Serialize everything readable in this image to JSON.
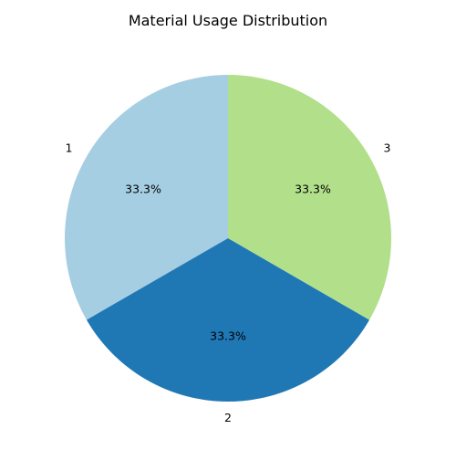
{
  "chart_data": {
    "type": "pie",
    "title": "Material Usage Distribution",
    "labels": [
      "1",
      "2",
      "3"
    ],
    "values": [
      33.3,
      33.3,
      33.3
    ],
    "value_labels": [
      "33.3%",
      "33.3%",
      "33.3%"
    ],
    "colors": [
      "#a6cee3",
      "#1f78b4",
      "#b2df8a"
    ],
    "start_angle_deg": 90,
    "direction": "counterclockwise",
    "legend": "none"
  }
}
